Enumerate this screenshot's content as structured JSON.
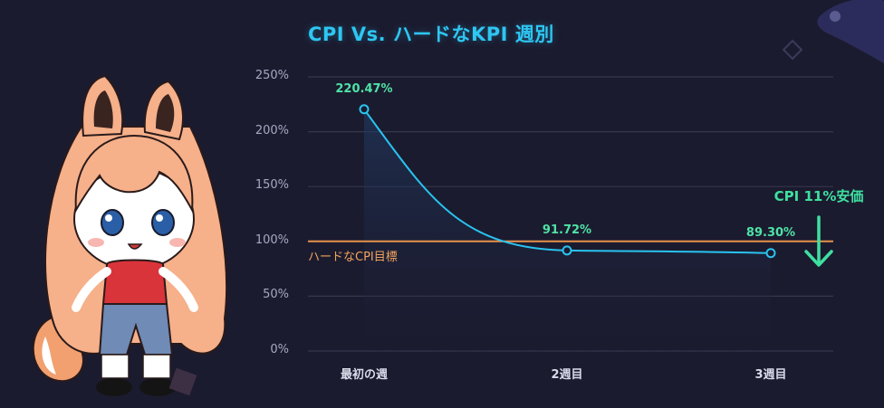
{
  "colors": {
    "background": "#1b1b2f",
    "title": "#2ec6f2",
    "line": "#29c3ef",
    "data_label": "#4ee3a6",
    "target_line": "#e8924a",
    "callout": "#3ee0a0",
    "grid": "#35364d"
  },
  "icons": {
    "mascot": "fox-girl-mascot-illustration",
    "arrow": "down-arrow-icon"
  },
  "chart_data": {
    "type": "line",
    "title": "CPI Vs. ハードなKPI 週別",
    "xlabel": "",
    "ylabel": "",
    "categories": [
      "最初の週",
      "2週目",
      "3週目"
    ],
    "series": [
      {
        "values": [
          220.47,
          91.72,
          89.3
        ]
      }
    ],
    "data_labels": [
      "220.47%",
      "91.72%",
      "89.30%"
    ],
    "y_ticks": [
      "0%",
      "50%",
      "100%",
      "150%",
      "200%",
      "250%"
    ],
    "ylim": [
      0,
      250
    ],
    "grid": true,
    "reference_line": {
      "label": "ハードなCPI目標",
      "value": 100
    },
    "annotation": "CPI 11%安価"
  }
}
